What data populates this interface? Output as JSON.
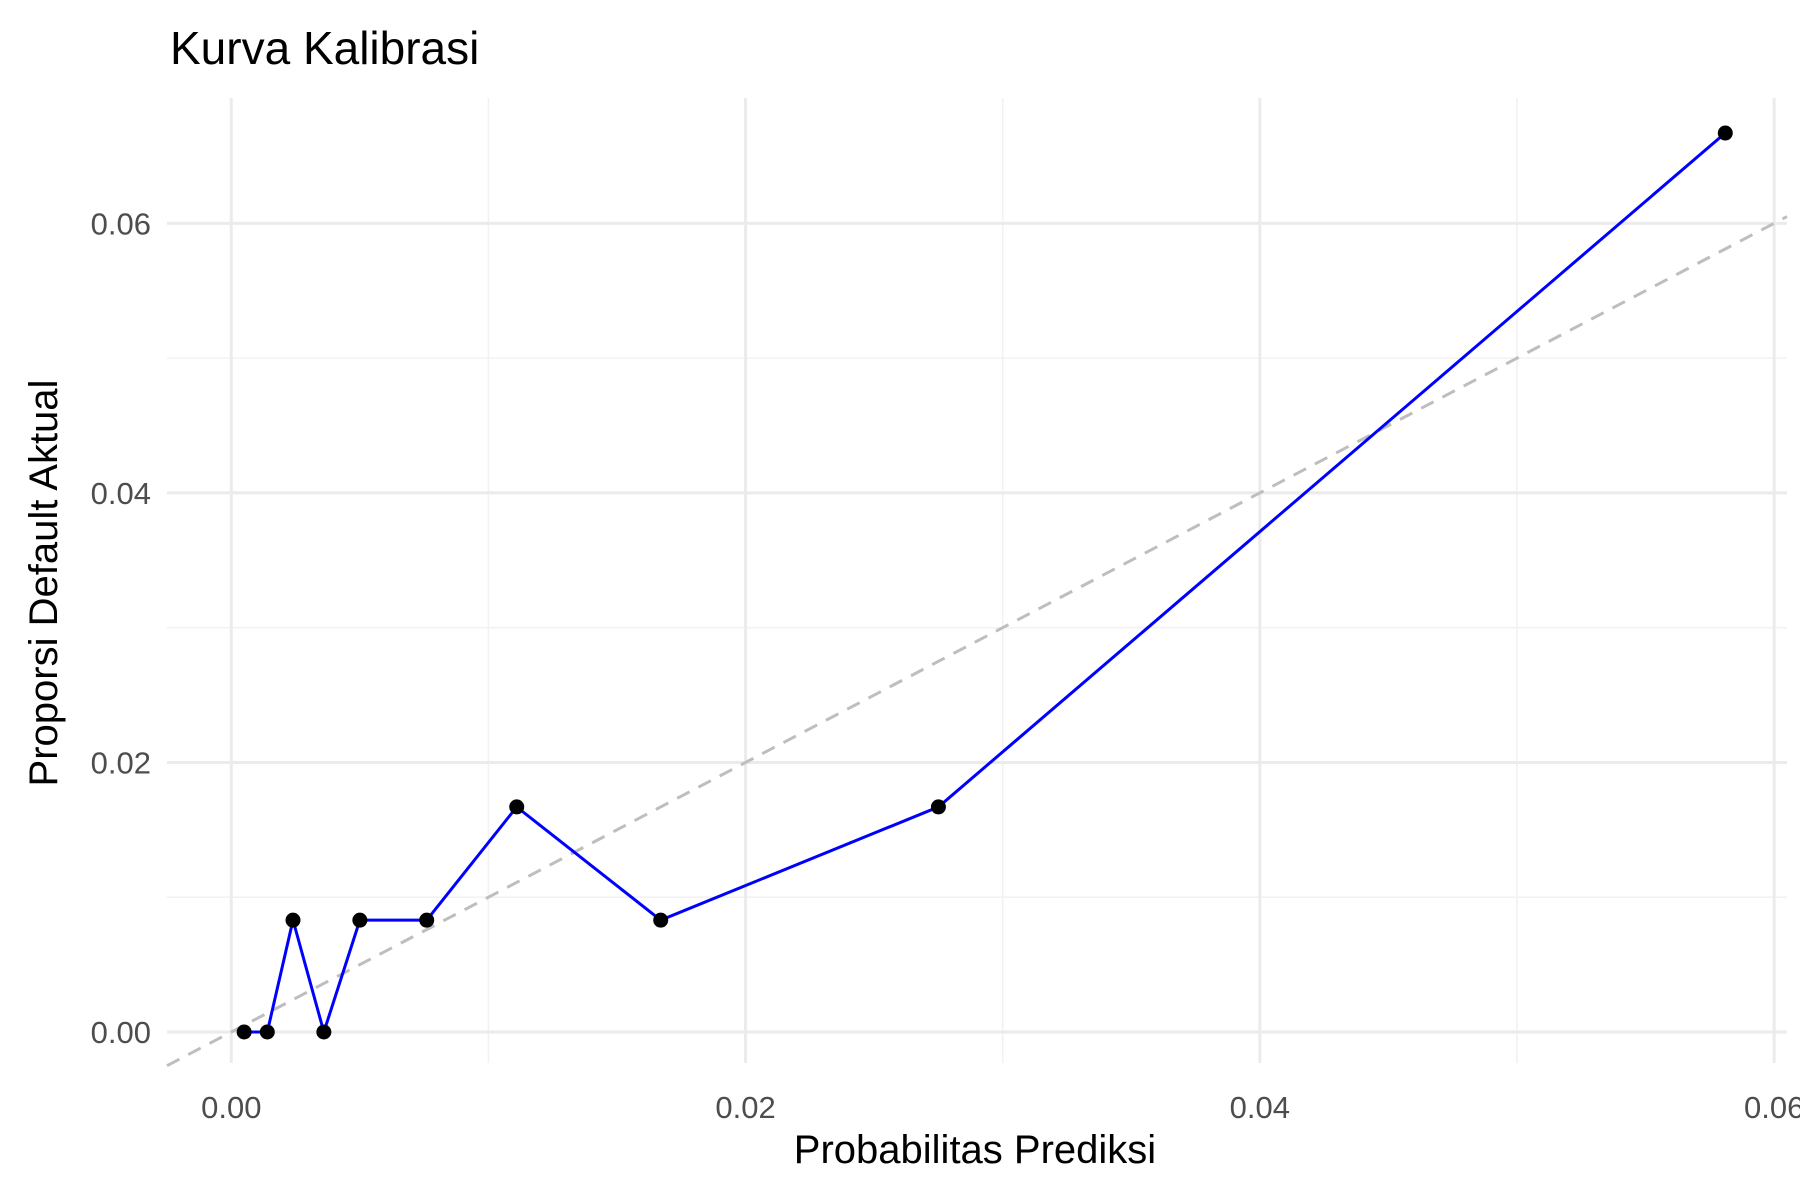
{
  "chart_data": {
    "type": "line",
    "title": "Kurva Kalibrasi",
    "xlabel": "Probabilitas Prediksi",
    "ylabel": "Proporsi Default Aktual",
    "xlim": [
      -0.0025,
      0.0605
    ],
    "ylim": [
      -0.0023,
      0.0693
    ],
    "x_ticks": [
      0.0,
      0.02,
      0.04,
      0.06
    ],
    "x_tick_labels": [
      "0.00",
      "0.02",
      "0.04",
      "0.06"
    ],
    "y_ticks": [
      0.0,
      0.02,
      0.04,
      0.06
    ],
    "y_tick_labels": [
      "0.00",
      "0.02",
      "0.04",
      "0.06"
    ],
    "grid": true,
    "series": [
      {
        "color": "#0000ff",
        "marker_color": "#000000",
        "points": [
          {
            "x": 0.0005,
            "y": 0.0
          },
          {
            "x": 0.0014,
            "y": 0.0
          },
          {
            "x": 0.0024,
            "y": 0.0083
          },
          {
            "x": 0.0036,
            "y": 0.0
          },
          {
            "x": 0.005,
            "y": 0.0083
          },
          {
            "x": 0.0076,
            "y": 0.0083
          },
          {
            "x": 0.0111,
            "y": 0.0167
          },
          {
            "x": 0.0167,
            "y": 0.0083
          },
          {
            "x": 0.0275,
            "y": 0.0167
          },
          {
            "x": 0.0581,
            "y": 0.0667
          }
        ]
      }
    ],
    "reference_line": {
      "slope": 1,
      "intercept": 0,
      "style": "dashed",
      "color": "#bebebe"
    }
  }
}
